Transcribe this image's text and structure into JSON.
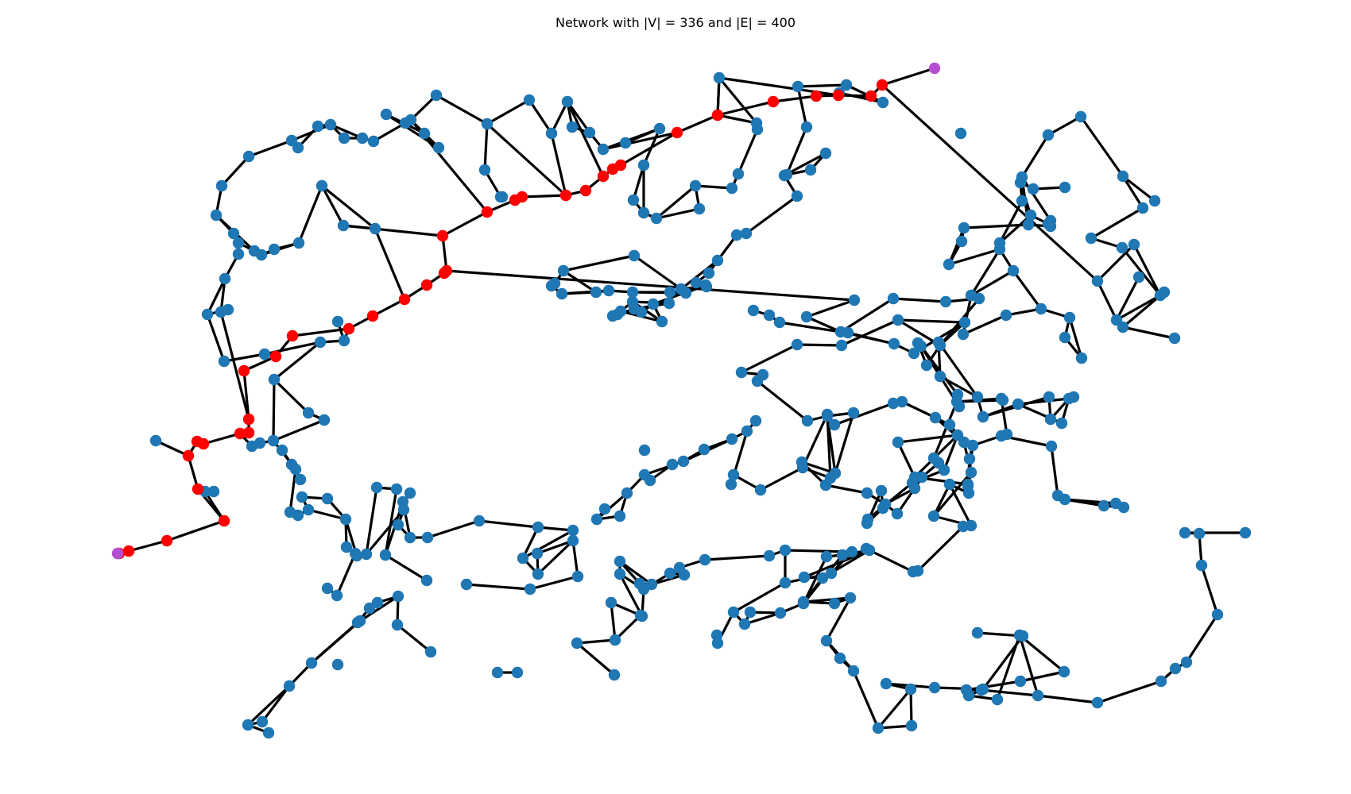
{
  "figure": {
    "title": "Network with |V| = 336 and |E| = 400"
  },
  "colors": {
    "node": "#1f77b4",
    "path_node": "#ff0000",
    "endpoint_node": "#b44fd1",
    "edge": "#000000",
    "background": "#ffffff"
  }
}
